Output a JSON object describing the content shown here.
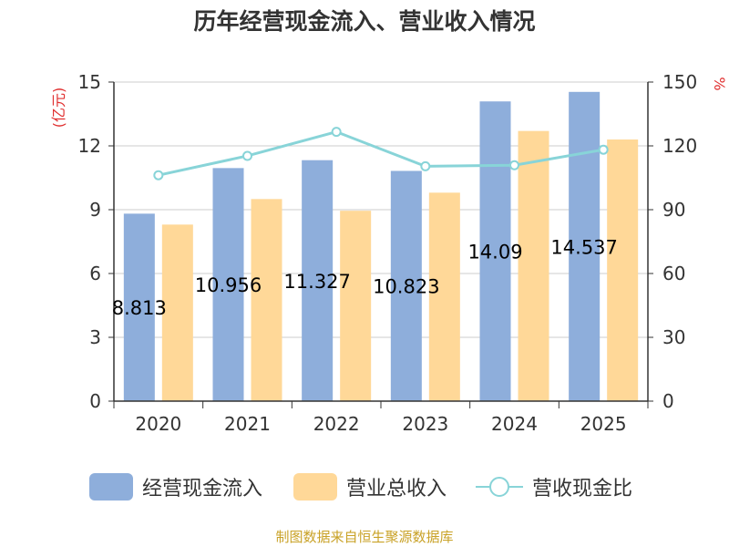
{
  "title": "历年经营现金流入、营业收入情况",
  "source": "制图数据来自恒生聚源数据库",
  "colors": {
    "inflow": "#8eaedb",
    "revenue": "#ffd898",
    "ratio": "#88d4d8",
    "axis": "#333333",
    "grid": "#cccccc",
    "unit": "#e03030"
  },
  "chart_data": {
    "type": "bar",
    "title": "历年经营现金流入、营业收入情况",
    "categories": [
      "2020",
      "2021",
      "2022",
      "2023",
      "2024",
      "2025"
    ],
    "series": [
      {
        "name": "经营现金流入",
        "type": "bar",
        "axis": "left",
        "values": [
          8.813,
          10.956,
          11.327,
          10.823,
          14.09,
          14.537
        ],
        "labels": [
          "8.813",
          "10.956",
          "11.327",
          "10.823",
          "14.09",
          "14.537"
        ]
      },
      {
        "name": "营业总收入",
        "type": "bar",
        "axis": "left",
        "values": [
          8.3,
          9.5,
          8.95,
          9.8,
          12.7,
          12.3
        ]
      },
      {
        "name": "营收现金比",
        "type": "line",
        "axis": "right",
        "values": [
          106.2,
          115.3,
          126.6,
          110.4,
          110.9,
          118.2
        ]
      }
    ],
    "y_left": {
      "label": "(亿元)",
      "min": 0,
      "max": 15,
      "ticks": [
        0,
        3,
        6,
        9,
        12,
        15
      ]
    },
    "y_right": {
      "label": "%",
      "min": 0,
      "max": 150,
      "ticks": [
        0,
        30,
        60,
        90,
        120,
        150
      ]
    },
    "grid": true,
    "legend_position": "bottom"
  }
}
